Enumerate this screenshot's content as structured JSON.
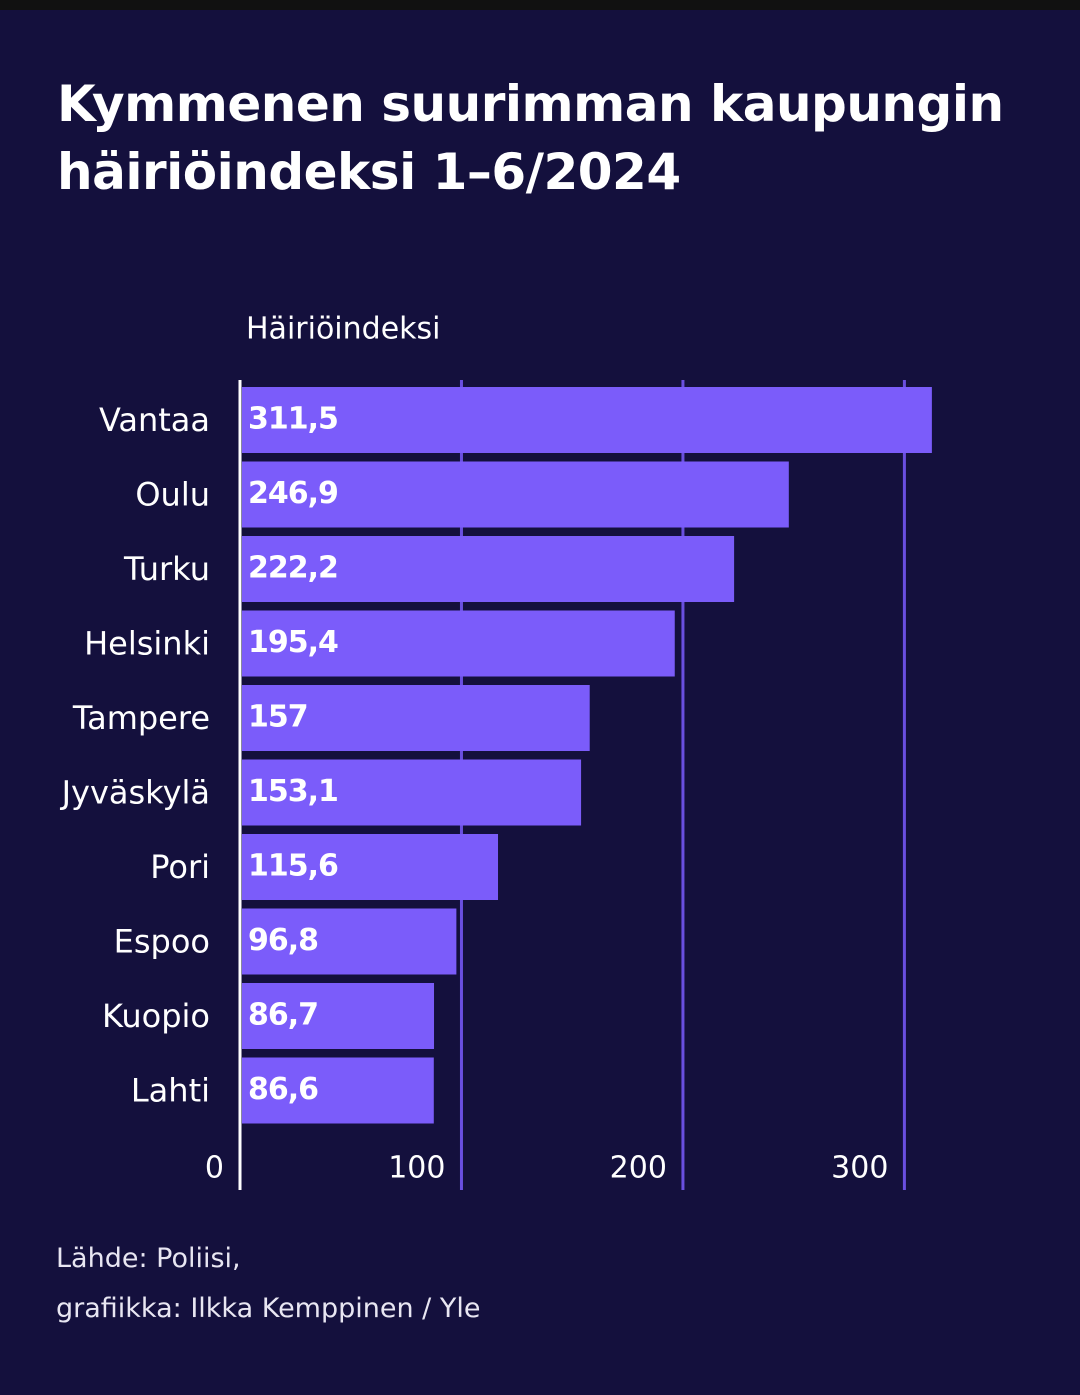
{
  "chart_data": {
    "type": "hbar",
    "title": "Kymmenen suurimman kaupungin häiriöindeksi 1–6/2024",
    "x_label": "Häiriöindeksi",
    "categories": [
      "Vantaa",
      "Oulu",
      "Turku",
      "Helsinki",
      "Tampere",
      "Jyväskylä",
      "Pori",
      "Espoo",
      "Kuopio",
      "Lahti"
    ],
    "values": [
      311.5,
      246.9,
      222.2,
      195.4,
      157,
      153.1,
      115.6,
      96.8,
      86.7,
      86.6
    ],
    "value_labels": [
      "311,5",
      "246,9",
      "222,2",
      "195,4",
      "157",
      "153,1",
      "115,6",
      "96,8",
      "86,7",
      "86,6"
    ],
    "color": "#7b5cfa",
    "xlim": [
      0,
      340
    ],
    "xticks": [
      0,
      100,
      200,
      300
    ],
    "grid": true,
    "source": [
      "Lähde: Poliisi,",
      "grafiikka: Ilkka Kemppinen / Yle"
    ]
  }
}
